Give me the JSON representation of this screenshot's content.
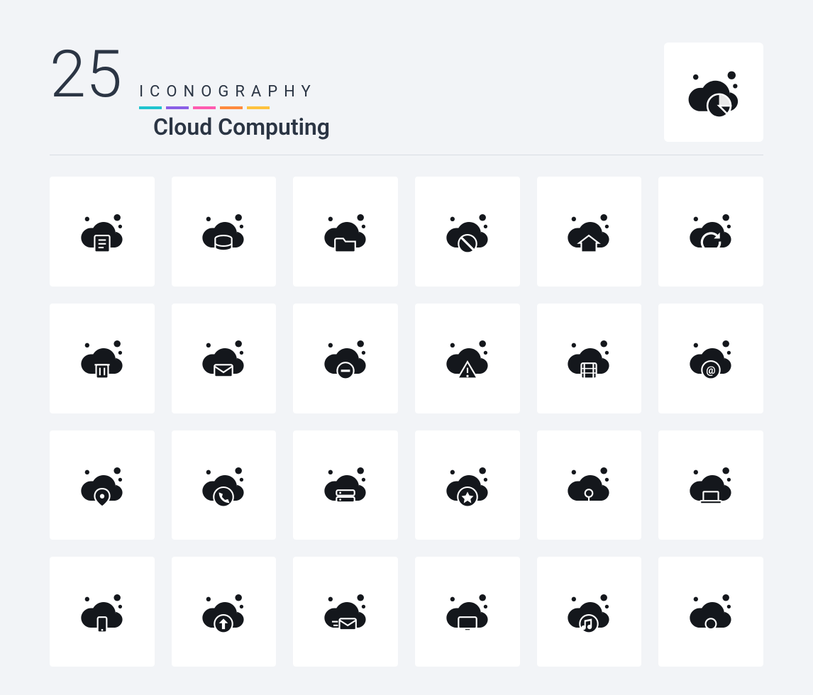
{
  "header": {
    "count": "25",
    "iconography_label": "ICONOGRAPHY",
    "subtitle": "Cloud Computing",
    "title_color": "#2b3544",
    "stripe_colors": [
      "#20c4cf",
      "#8a5fe6",
      "#ff5bb0",
      "#ff8a3d",
      "#ffc23d"
    ]
  },
  "layout": {
    "page_bg": "#f2f4f7",
    "card_bg": "#ffffff",
    "icon_color": "#14171c",
    "grid_cols": 6,
    "grid_rows": 4,
    "feature_card_size": 140,
    "cell_icon_size": 72,
    "feature_icon_size": 86
  },
  "feature_icon": "cloud-pie-chart-icon",
  "icons": [
    "cloud-document-icon",
    "cloud-database-icon",
    "cloud-folder-icon",
    "cloud-blocked-icon",
    "cloud-home-icon",
    "cloud-refresh-icon",
    "cloud-trash-icon",
    "cloud-mail-icon",
    "cloud-remove-icon",
    "cloud-warning-icon",
    "cloud-film-icon",
    "cloud-at-icon",
    "cloud-location-icon",
    "cloud-phone-icon",
    "cloud-server-icon",
    "cloud-star-icon",
    "cloud-network-icon",
    "cloud-laptop-icon",
    "cloud-mobile-icon",
    "cloud-upload-icon",
    "cloud-send-mail-icon",
    "cloud-monitor-icon",
    "cloud-music-icon",
    "cloud-settings-icon"
  ]
}
